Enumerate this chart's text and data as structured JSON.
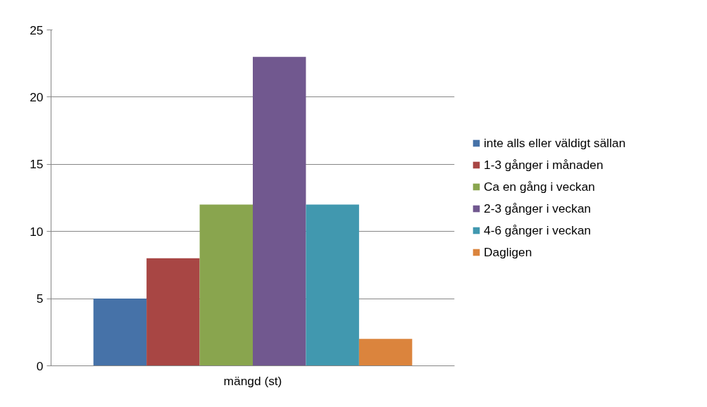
{
  "chart_data": {
    "type": "bar",
    "categories": [
      "mängd (st)"
    ],
    "series": [
      {
        "name": "inte alls eller väldigt sällan",
        "color": "#4672a8",
        "values": [
          5
        ]
      },
      {
        "name": "1-3 gånger i månaden",
        "color": "#a84644",
        "values": [
          8
        ]
      },
      {
        "name": "Ca en gång i veckan",
        "color": "#89a54e",
        "values": [
          12
        ]
      },
      {
        "name": "2-3 gånger i veckan",
        "color": "#71588f",
        "values": [
          23
        ]
      },
      {
        "name": "4-6 gånger i veckan",
        "color": "#4198af",
        "values": [
          12
        ]
      },
      {
        "name": "Dagligen",
        "color": "#db843d",
        "values": [
          2
        ]
      }
    ],
    "ylim": [
      0,
      25
    ],
    "yticks": [
      0,
      5,
      10,
      15,
      20,
      25
    ],
    "grid": "y",
    "legend": "right"
  }
}
